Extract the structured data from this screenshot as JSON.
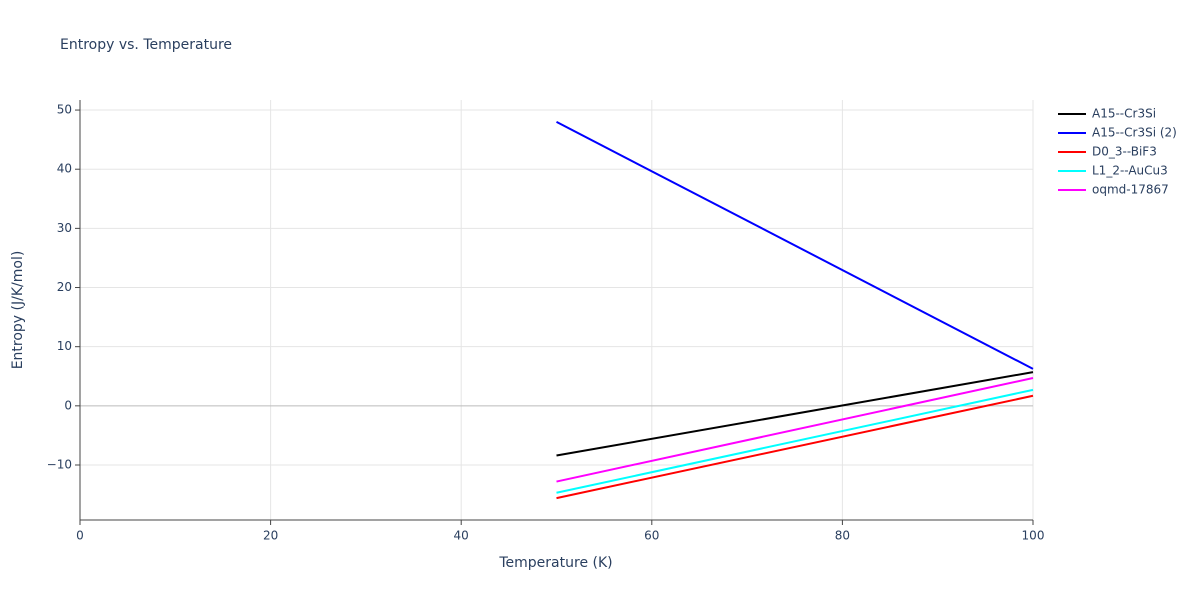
{
  "chart_data": {
    "type": "line",
    "title": "Entropy vs. Temperature",
    "x_label": "Temperature (K)",
    "y_label": "Entropy (J/K/mol)",
    "x": [
      50,
      100
    ],
    "series": [
      {
        "name": "A15--Cr3Si",
        "color": "#000000",
        "values": [
          -8.4,
          5.7
        ]
      },
      {
        "name": "A15--Cr3Si (2)",
        "color": "#0000ff",
        "values": [
          48.0,
          6.25
        ]
      },
      {
        "name": "D0_3--BiF3",
        "color": "#ff0000",
        "values": [
          -15.6,
          1.7
        ]
      },
      {
        "name": "L1_2--AuCu3",
        "color": "#00ffff",
        "values": [
          -14.7,
          2.7
        ]
      },
      {
        "name": "oqmd-17867",
        "color": "#ff00ff",
        "values": [
          -12.8,
          4.7
        ]
      }
    ],
    "xlim": [
      0,
      100
    ],
    "xticks": [
      0,
      20,
      40,
      60,
      80,
      100
    ],
    "ylim": [
      -19.3,
      51.7
    ],
    "yticks": [
      {
        "value": -10,
        "label": "−10"
      },
      0,
      10,
      20,
      30,
      40,
      50
    ],
    "grid": true,
    "legend": "right"
  }
}
